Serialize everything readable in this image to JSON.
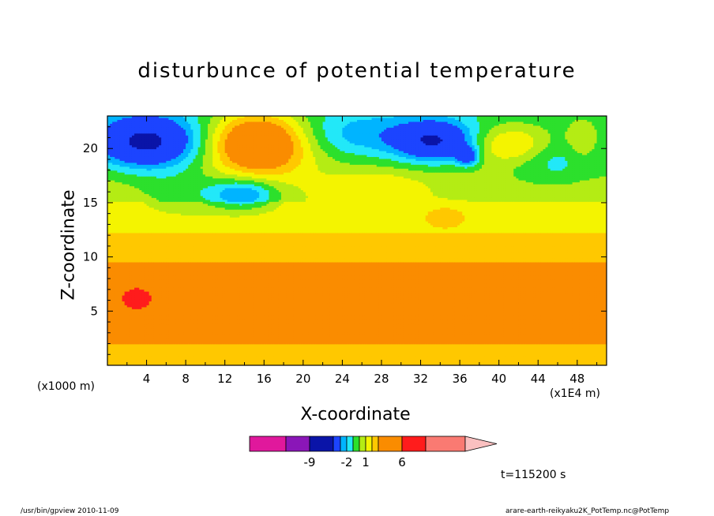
{
  "chart_data": {
    "type": "heatmap",
    "title": "disturbunce of potential temperature",
    "xlabel": "X-coordinate",
    "ylabel": "Z-coordinate",
    "x_unit": "(x1000 m)",
    "x_scale": "(x1E4 m)",
    "xlim": [
      0,
      51
    ],
    "ylim": [
      0,
      23
    ],
    "x_ticks": [
      "4",
      "8",
      "12",
      "16",
      "20",
      "24",
      "28",
      "32",
      "36",
      "40",
      "44",
      "48"
    ],
    "y_ticks": [
      "5",
      "10",
      "15",
      "20"
    ],
    "colorbar": {
      "levels": [
        -12,
        -9,
        -6,
        -3,
        -2,
        -1,
        0,
        1,
        2,
        3,
        6,
        9,
        12
      ],
      "colors": [
        "#e0189c",
        "#8a16b8",
        "#0a14a8",
        "#1c44ff",
        "#00b4ff",
        "#22e8f8",
        "#2ce02c",
        "#b4ec14",
        "#f4f400",
        "#ffc800",
        "#fa8c00",
        "#ff1c1c",
        "#fa7a72",
        "#fac0c0"
      ],
      "labels": [
        {
          "text": "-9",
          "value": -9
        },
        {
          "text": "-2",
          "value": -2
        },
        {
          "text": "1",
          "value": 1
        },
        {
          "text": "6",
          "value": 6
        }
      ]
    },
    "annotation": "t=115200 s"
  },
  "footer": {
    "left": "/usr/bin/gpview   2010-11-09",
    "right": "arare-earth-reikyaku2K_PotTemp.nc@PotTemp"
  }
}
